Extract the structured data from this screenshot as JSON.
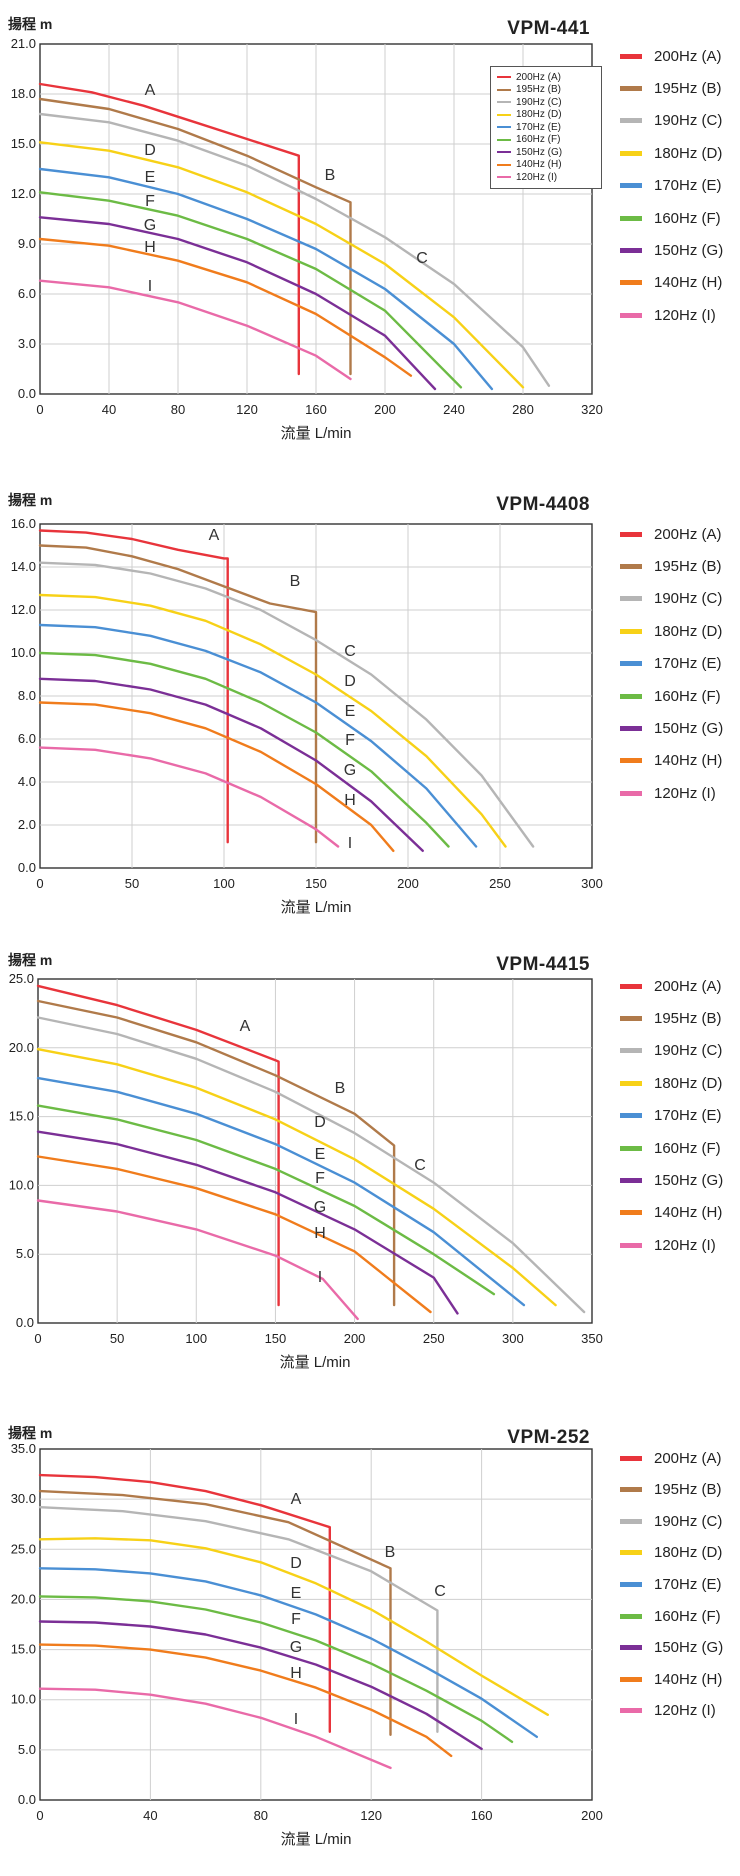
{
  "legend_colors": [
    "#e8343b",
    "#b07a4a",
    "#b5b5b5",
    "#f7d117",
    "#4a8fd4",
    "#6cbb45",
    "#7b2f96",
    "#f07c1c",
    "#e96aa8"
  ],
  "series_letters": [
    "A",
    "B",
    "C",
    "D",
    "E",
    "F",
    "G",
    "H",
    "I"
  ],
  "chart_data": [
    {
      "type": "line",
      "title": "VPM-441",
      "ylabel": "揚程 m",
      "xlabel": "流量 L/min",
      "xlim": [
        0,
        320
      ],
      "ylim": [
        0,
        21
      ],
      "xticks": [
        "0",
        "40",
        "80",
        "120",
        "160",
        "200",
        "240",
        "280",
        "320"
      ],
      "yticks": [
        "0.0",
        "3.0",
        "6.0",
        "9.0",
        "12.0",
        "15.0",
        "18.0",
        "21.0"
      ],
      "grid": true,
      "legend_position": "right",
      "inset_legend": true,
      "series": [
        {
          "name": "200Hz (A)",
          "label": "A",
          "x": [
            0,
            30,
            60,
            90,
            120,
            150,
            150
          ],
          "y": [
            18.6,
            18.1,
            17.3,
            16.3,
            15.3,
            14.3,
            1.2
          ]
        },
        {
          "name": "195Hz (B)",
          "label": "B",
          "x": [
            0,
            40,
            80,
            120,
            160,
            180,
            180
          ],
          "y": [
            17.7,
            17.1,
            15.9,
            14.3,
            12.4,
            11.5,
            1.2
          ]
        },
        {
          "name": "190Hz (C)",
          "label": "C",
          "x": [
            0,
            40,
            80,
            120,
            160,
            200,
            240,
            280,
            295
          ],
          "y": [
            16.8,
            16.3,
            15.2,
            13.7,
            11.7,
            9.4,
            6.6,
            2.8,
            0.5
          ]
        },
        {
          "name": "180Hz (D)",
          "label": "D",
          "x": [
            0,
            40,
            80,
            120,
            160,
            200,
            240,
            280
          ],
          "y": [
            15.1,
            14.6,
            13.6,
            12.1,
            10.2,
            7.8,
            4.6,
            0.4
          ]
        },
        {
          "name": "170Hz (E)",
          "label": "E",
          "x": [
            0,
            40,
            80,
            120,
            160,
            200,
            240,
            262
          ],
          "y": [
            13.5,
            13.0,
            12.0,
            10.5,
            8.7,
            6.3,
            3.0,
            0.3
          ]
        },
        {
          "name": "160Hz (F)",
          "label": "F",
          "x": [
            0,
            40,
            80,
            120,
            160,
            200,
            244
          ],
          "y": [
            12.1,
            11.6,
            10.7,
            9.3,
            7.5,
            5.0,
            0.4
          ]
        },
        {
          "name": "150Hz (G)",
          "label": "G",
          "x": [
            0,
            40,
            80,
            120,
            160,
            200,
            229
          ],
          "y": [
            10.6,
            10.2,
            9.3,
            7.9,
            6.0,
            3.5,
            0.3
          ]
        },
        {
          "name": "140Hz (H)",
          "label": "H",
          "x": [
            0,
            40,
            80,
            120,
            160,
            200,
            215
          ],
          "y": [
            9.3,
            8.9,
            8.0,
            6.7,
            4.8,
            2.2,
            1.1
          ]
        },
        {
          "name": "120Hz (I)",
          "label": "I",
          "x": [
            0,
            40,
            80,
            120,
            160,
            180
          ],
          "y": [
            6.8,
            6.4,
            5.5,
            4.1,
            2.3,
            0.9
          ]
        }
      ]
    },
    {
      "type": "line",
      "title": "VPM-4408",
      "ylabel": "揚程 m",
      "xlabel": "流量 L/min",
      "xlim": [
        0,
        300
      ],
      "ylim": [
        0,
        16
      ],
      "xticks": [
        "0",
        "50",
        "100",
        "150",
        "200",
        "250",
        "300"
      ],
      "yticks": [
        "0.0",
        "2.0",
        "4.0",
        "6.0",
        "8.0",
        "10.0",
        "12.0",
        "14.0",
        "16.0"
      ],
      "grid": true,
      "legend_position": "right",
      "series": [
        {
          "name": "200Hz (A)",
          "label": "A",
          "x": [
            0,
            25,
            50,
            75,
            100,
            102,
            102
          ],
          "y": [
            15.7,
            15.6,
            15.3,
            14.8,
            14.4,
            14.4,
            1.2
          ]
        },
        {
          "name": "195Hz (B)",
          "label": "B",
          "x": [
            0,
            25,
            50,
            75,
            100,
            125,
            150,
            150
          ],
          "y": [
            15.0,
            14.9,
            14.5,
            13.9,
            13.1,
            12.3,
            11.9,
            1.2
          ]
        },
        {
          "name": "190Hz (C)",
          "label": "C",
          "x": [
            0,
            30,
            60,
            90,
            120,
            150,
            180,
            210,
            240,
            268
          ],
          "y": [
            14.2,
            14.1,
            13.7,
            13.0,
            12.0,
            10.6,
            9.0,
            6.9,
            4.3,
            1.0
          ]
        },
        {
          "name": "180Hz (D)",
          "label": "D",
          "x": [
            0,
            30,
            60,
            90,
            120,
            150,
            180,
            210,
            240,
            253
          ],
          "y": [
            12.7,
            12.6,
            12.2,
            11.5,
            10.4,
            9.0,
            7.3,
            5.2,
            2.5,
            1.0
          ]
        },
        {
          "name": "170Hz (E)",
          "label": "E",
          "x": [
            0,
            30,
            60,
            90,
            120,
            150,
            180,
            210,
            237
          ],
          "y": [
            11.3,
            11.2,
            10.8,
            10.1,
            9.1,
            7.7,
            5.9,
            3.7,
            1.0
          ]
        },
        {
          "name": "160Hz (F)",
          "label": "F",
          "x": [
            0,
            30,
            60,
            90,
            120,
            150,
            180,
            210,
            222
          ],
          "y": [
            10.0,
            9.9,
            9.5,
            8.8,
            7.7,
            6.3,
            4.5,
            2.1,
            1.0
          ]
        },
        {
          "name": "150Hz (G)",
          "label": "G",
          "x": [
            0,
            30,
            60,
            90,
            120,
            150,
            180,
            208
          ],
          "y": [
            8.8,
            8.7,
            8.3,
            7.6,
            6.5,
            5.0,
            3.1,
            0.8
          ]
        },
        {
          "name": "140Hz (H)",
          "label": "H",
          "x": [
            0,
            30,
            60,
            90,
            120,
            150,
            180,
            192
          ],
          "y": [
            7.7,
            7.6,
            7.2,
            6.5,
            5.4,
            3.9,
            2.0,
            0.8
          ]
        },
        {
          "name": "120Hz (I)",
          "label": "I",
          "x": [
            0,
            30,
            60,
            90,
            120,
            150,
            162
          ],
          "y": [
            5.6,
            5.5,
            5.1,
            4.4,
            3.3,
            1.8,
            1.0
          ]
        }
      ]
    },
    {
      "type": "line",
      "title": "VPM-4415",
      "ylabel": "揚程 m",
      "xlabel": "流量 L/min",
      "xlim": [
        0,
        350
      ],
      "ylim": [
        0,
        25
      ],
      "xticks": [
        "0",
        "50",
        "100",
        "150",
        "200",
        "250",
        "300",
        "350"
      ],
      "yticks": [
        "0.0",
        "5.0",
        "10.0",
        "15.0",
        "20.0",
        "25.0"
      ],
      "grid": true,
      "legend_position": "right",
      "series": [
        {
          "name": "200Hz (A)",
          "label": "A",
          "x": [
            0,
            50,
            100,
            150,
            152,
            152
          ],
          "y": [
            24.5,
            23.1,
            21.3,
            19.1,
            19.0,
            1.3
          ]
        },
        {
          "name": "195Hz (B)",
          "label": "B",
          "x": [
            0,
            50,
            100,
            150,
            200,
            225,
            225
          ],
          "y": [
            23.4,
            22.2,
            20.4,
            18.0,
            15.2,
            12.9,
            1.3
          ]
        },
        {
          "name": "190Hz (C)",
          "label": "C",
          "x": [
            0,
            50,
            100,
            150,
            200,
            250,
            300,
            345
          ],
          "y": [
            22.2,
            21.0,
            19.2,
            16.8,
            13.8,
            10.2,
            5.8,
            0.8
          ]
        },
        {
          "name": "180Hz (D)",
          "label": "D",
          "x": [
            0,
            50,
            100,
            150,
            200,
            250,
            300,
            327
          ],
          "y": [
            19.9,
            18.8,
            17.1,
            14.8,
            11.9,
            8.3,
            4.0,
            1.3
          ]
        },
        {
          "name": "170Hz (E)",
          "label": "E",
          "x": [
            0,
            50,
            100,
            150,
            200,
            250,
            307
          ],
          "y": [
            17.8,
            16.8,
            15.2,
            13.0,
            10.2,
            6.6,
            1.3
          ]
        },
        {
          "name": "160Hz (F)",
          "label": "F",
          "x": [
            0,
            50,
            100,
            150,
            200,
            250,
            288
          ],
          "y": [
            15.8,
            14.8,
            13.3,
            11.2,
            8.5,
            5.0,
            2.1
          ]
        },
        {
          "name": "150Hz (G)",
          "label": "G",
          "x": [
            0,
            50,
            100,
            150,
            200,
            250,
            265
          ],
          "y": [
            13.9,
            13.0,
            11.5,
            9.5,
            6.8,
            3.3,
            0.7
          ]
        },
        {
          "name": "140Hz (H)",
          "label": "H",
          "x": [
            0,
            50,
            100,
            150,
            200,
            248
          ],
          "y": [
            12.1,
            11.2,
            9.8,
            7.9,
            5.2,
            0.8
          ]
        },
        {
          "name": "120Hz (I)",
          "label": "I",
          "x": [
            0,
            50,
            100,
            150,
            180,
            202
          ],
          "y": [
            8.9,
            8.1,
            6.8,
            4.9,
            3.2,
            0.3
          ]
        }
      ]
    },
    {
      "type": "line",
      "title": "VPM-252",
      "ylabel": "揚程 m",
      "xlabel": "流量 L/min",
      "xlim": [
        0,
        200
      ],
      "ylim": [
        0,
        35
      ],
      "xticks": [
        "0",
        "40",
        "80",
        "120",
        "160",
        "200"
      ],
      "yticks": [
        "0.0",
        "5.0",
        "10.0",
        "15.0",
        "20.0",
        "25.0",
        "30.0",
        "35.0"
      ],
      "grid": true,
      "legend_position": "right",
      "series": [
        {
          "name": "200Hz (A)",
          "label": "A",
          "x": [
            0,
            20,
            40,
            60,
            80,
            105,
            105
          ],
          "y": [
            32.4,
            32.2,
            31.7,
            30.8,
            29.4,
            27.2,
            6.8
          ]
        },
        {
          "name": "195Hz (B)",
          "label": "B",
          "x": [
            0,
            30,
            60,
            90,
            127,
            127
          ],
          "y": [
            30.8,
            30.4,
            29.5,
            27.7,
            23.1,
            6.5
          ]
        },
        {
          "name": "190Hz (C)",
          "label": "C",
          "x": [
            0,
            30,
            60,
            90,
            120,
            144,
            144
          ],
          "y": [
            29.2,
            28.8,
            27.8,
            26.0,
            22.8,
            18.9,
            6.8
          ]
        },
        {
          "name": "180Hz (D)",
          "label": "D",
          "x": [
            0,
            20,
            40,
            60,
            80,
            100,
            120,
            140,
            160,
            184
          ],
          "y": [
            26.0,
            26.1,
            25.9,
            25.1,
            23.7,
            21.6,
            19.0,
            15.8,
            12.4,
            8.5
          ]
        },
        {
          "name": "170Hz (E)",
          "label": "E",
          "x": [
            0,
            20,
            40,
            60,
            80,
            100,
            120,
            140,
            160,
            180
          ],
          "y": [
            23.1,
            23.0,
            22.6,
            21.8,
            20.4,
            18.5,
            16.1,
            13.2,
            10.1,
            6.3
          ]
        },
        {
          "name": "160Hz (F)",
          "label": "F",
          "x": [
            0,
            20,
            40,
            60,
            80,
            100,
            120,
            140,
            160,
            171
          ],
          "y": [
            20.3,
            20.2,
            19.8,
            19.0,
            17.7,
            15.9,
            13.6,
            10.9,
            7.9,
            5.8
          ]
        },
        {
          "name": "150Hz (G)",
          "label": "G",
          "x": [
            0,
            20,
            40,
            60,
            80,
            100,
            120,
            140,
            160
          ],
          "y": [
            17.8,
            17.7,
            17.3,
            16.5,
            15.2,
            13.5,
            11.3,
            8.6,
            5.1
          ]
        },
        {
          "name": "140Hz (H)",
          "label": "H",
          "x": [
            0,
            20,
            40,
            60,
            80,
            100,
            120,
            140,
            149
          ],
          "y": [
            15.5,
            15.4,
            15.0,
            14.2,
            12.9,
            11.2,
            9.0,
            6.3,
            4.4
          ]
        },
        {
          "name": "120Hz (I)",
          "label": "I",
          "x": [
            0,
            20,
            40,
            60,
            80,
            100,
            127
          ],
          "y": [
            11.1,
            11.0,
            10.5,
            9.6,
            8.2,
            6.3,
            3.2
          ]
        }
      ]
    }
  ]
}
